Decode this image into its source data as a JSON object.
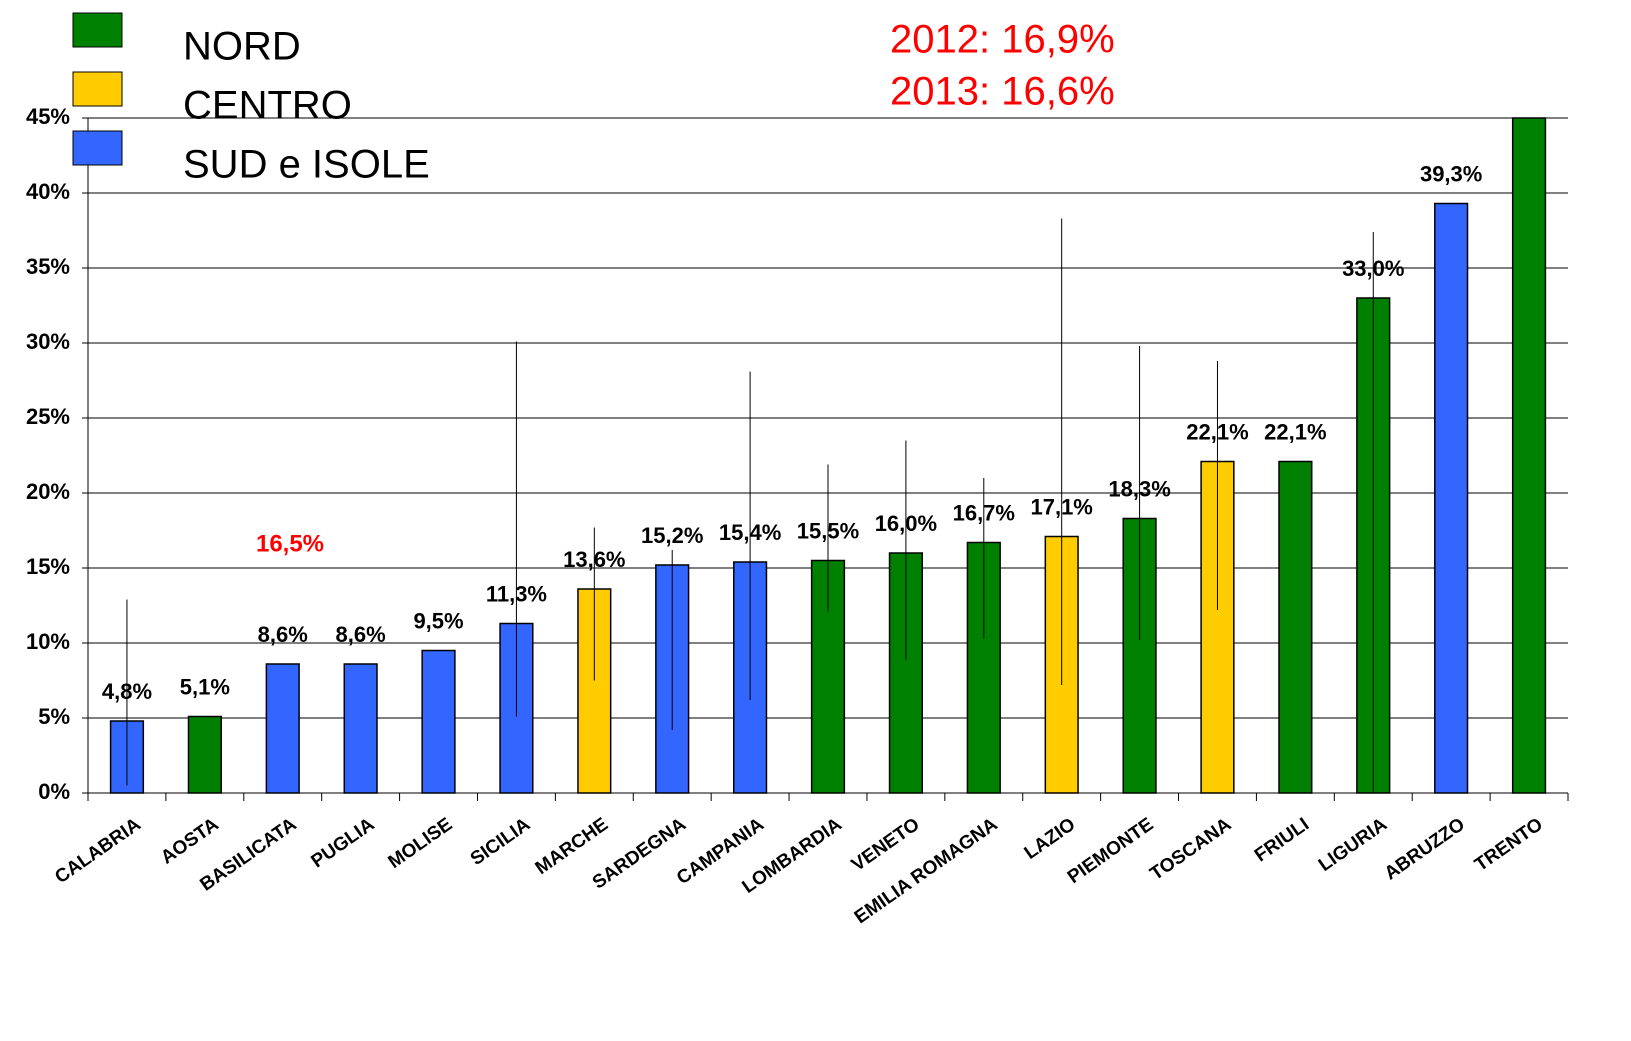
{
  "chart_data": {
    "type": "bar",
    "categories": [
      "CALABRIA",
      "AOSTA",
      "BASILICATA",
      "PUGLIA",
      "MOLISE",
      "SICILIA",
      "MARCHE",
      "SARDEGNA",
      "CAMPANIA",
      "LOMBARDIA",
      "VENETO",
      "EMILIA ROMAGNA",
      "LAZIO",
      "PIEMONTE",
      "TOSCANA",
      "FRIULI",
      "LIGURIA",
      "ABRUZZO",
      "TRENTO"
    ],
    "values": [
      4.8,
      5.1,
      8.6,
      8.6,
      9.5,
      11.3,
      13.6,
      15.2,
      15.4,
      15.5,
      16.0,
      16.7,
      17.1,
      18.3,
      22.1,
      22.1,
      33.0,
      39.3,
      45
    ],
    "value_labels": [
      "4,8%",
      "5,1%",
      "8,6%",
      "8,6%",
      "9,5%",
      "11,3%",
      "13,6%",
      "15,2%",
      "15,4%",
      "15,5%",
      "16,0%",
      "16,7%",
      "17,1%",
      "18,3%",
      "22,1%",
      "22,1%",
      "33,0%",
      "39,3%",
      null
    ],
    "colors": [
      "#3366ff",
      "#008000",
      "#3366ff",
      "#3366ff",
      "#3366ff",
      "#3366ff",
      "#ffcc00",
      "#3366ff",
      "#3366ff",
      "#008000",
      "#008000",
      "#008000",
      "#ffcc00",
      "#008000",
      "#ffcc00",
      "#008000",
      "#008000",
      "#3366ff",
      "#008000"
    ],
    "error_bars": [
      [
        0.5,
        12.9
      ],
      null,
      null,
      null,
      null,
      [
        5.1,
        30.1
      ],
      [
        7.5,
        17.7
      ],
      [
        4.2,
        16.2
      ],
      [
        6.2,
        28.1
      ],
      [
        12.1,
        21.9
      ],
      [
        8.9,
        23.5
      ],
      [
        10.3,
        21.0
      ],
      [
        7.2,
        38.3
      ],
      [
        10.2,
        29.8
      ],
      [
        12.2,
        28.8
      ],
      null,
      [
        0,
        37.4
      ],
      null,
      null
    ],
    "legend": [
      {
        "name": "NORD",
        "color": "#008000"
      },
      {
        "name": "CENTRO",
        "color": "#ffcc00"
      },
      {
        "name": "SUD e ISOLE",
        "color": "#3366ff"
      }
    ],
    "annotations": [
      "2012: 16,9%",
      "2013: 16,6%",
      "16,5%"
    ],
    "ylim": [
      0,
      45
    ],
    "yticks": [
      {
        "value": 0,
        "label": "0%"
      },
      {
        "value": 5,
        "label": "5%"
      },
      {
        "value": 10,
        "label": "10%"
      },
      {
        "value": 15,
        "label": "15%"
      },
      {
        "value": 20,
        "label": "20%"
      },
      {
        "value": 25,
        "label": "25%"
      },
      {
        "value": 30,
        "label": "30%"
      },
      {
        "value": 35,
        "label": "35%"
      },
      {
        "value": 40,
        "label": "40%"
      },
      {
        "value": 45,
        "label": "45%"
      }
    ],
    "grid": true
  }
}
